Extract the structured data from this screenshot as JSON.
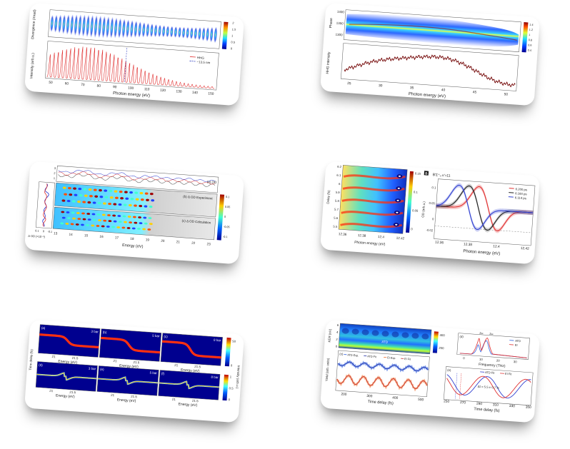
{
  "panel1": {
    "top_ylabel": "Divergence (mrad)",
    "bottom_ylabel": "Intensity (arb.u.)",
    "xlabel": "Photon energy (eV)",
    "xticks": [
      "50",
      "60",
      "70",
      "80",
      "90",
      "100",
      "110",
      "120",
      "130",
      "140",
      "150"
    ],
    "colorbar_ticks": [
      "0",
      "0.5",
      "1",
      "1.5",
      "2"
    ],
    "legend": [
      "HHG",
      "~13.5 nm"
    ],
    "series_colors": {
      "hhg": "#e03030",
      "marker": "#3040c0"
    }
  },
  "panel2": {
    "top_ylabel": "Phase",
    "bottom_ylabel": "HHG intensity",
    "xlabel": "Photon energy (eV)",
    "yticks_top": [
      "1400",
      "1350",
      "1300"
    ],
    "xticks": [
      "25",
      "30",
      "35",
      "40",
      "45",
      "50"
    ],
    "colorbar_ticks": [
      "1.4",
      "1.2",
      "1",
      "0.8",
      "0.6",
      "0.4"
    ]
  },
  "panel3": {
    "label_a": "(a) OD",
    "label_b": "(b) Δ OD Experiment",
    "label_c": "(c) Δ OD Calculation",
    "top_yticks": [
      "3",
      "2",
      "1"
    ],
    "xlabel": "Energy (eV)",
    "xticks": [
      "13",
      "14",
      "15",
      "16",
      "17",
      "18",
      "19",
      "20",
      "21",
      "22",
      "23"
    ],
    "colorbar_ticks": [
      "0.1",
      "0.05",
      "0",
      "-0.05",
      "-0.1"
    ],
    "left_xticks": [
      "0.1",
      "0",
      "-0.1"
    ],
    "left_label": "Δ OD (×10⁻³)"
  },
  "panel4": {
    "left_ylabel": "Delay (fs)",
    "left_yticks": [
      "6.2",
      "6.1",
      "6",
      "5.9",
      "5.8",
      "5.7",
      "5.6",
      "5.5"
    ],
    "left_xticks": [
      "12.36",
      "12.38",
      "12.4",
      "12.42"
    ],
    "colorbar_ticks": [
      "0.15",
      "0.1",
      "0.05",
      "0"
    ],
    "panel_letter": "B",
    "state_label": "B′Σ⁺ᵤ v′=11",
    "legend": [
      "6.200 ps",
      "6.160 ps",
      "6.114 ps"
    ],
    "right_ylabel": "OD (arb.u.)",
    "right_yticks": [
      "0.1",
      "0.05",
      "0",
      "-0.02"
    ],
    "right_xticks": [
      "12.36",
      "12.38",
      "12.4",
      "12.42"
    ],
    "xlabel": "Photon energy (eV)",
    "series_colors": [
      "#e03030",
      "#202020",
      "#3040d0"
    ]
  },
  "panel5": {
    "panels_top": [
      "(a)",
      "(b)",
      "(c)"
    ],
    "pressures_top": [
      "3 bar",
      "5 bar",
      "8 bar"
    ],
    "panels_bottom": [
      "(d)",
      "(e)",
      "(f)"
    ],
    "pressures_bottom": [
      "3 bar",
      "5 bar",
      "8 bar"
    ],
    "xticks": [
      "21",
      "21.5"
    ],
    "xlabel": "Energy (eV)",
    "colorbar_top": [
      "50",
      "0"
    ],
    "colorbar_bottom": [
      "1",
      "0.5",
      "0"
    ],
    "colorbar_label": "Intensity (arb.u.)",
    "ylabel": "Time delay (fs)"
  },
  "panel6": {
    "ylabel_a": "KER (eV)",
    "yticks_a": [
      "6",
      "4",
      "2",
      "0"
    ],
    "colorbar": [
      "400",
      "200"
    ],
    "atd_label": "ATD",
    "legend_c": [
      "ATD Exp.",
      "ATD Fit",
      "EI Exp.",
      "EI Fit"
    ],
    "ylabel_c": "Yield (arb. units)",
    "label_c": "(c)",
    "xticks_left": [
      "200",
      "300",
      "400",
      "500"
    ],
    "xlabel_left": "Time delay (fs)",
    "label_d": "(d)",
    "legend_d": [
      "ATD",
      "EI"
    ],
    "xticks_d": [
      "0",
      "10",
      "20",
      "30"
    ],
    "xlabel_d": "Frequency (THz)",
    "omega_labels": [
      "2ω",
      "2ω"
    ],
    "label_e": "(e)",
    "legend_e": [
      "ATD Fit",
      "EI Fit"
    ],
    "delta_t": "Δt = 5.5 ± 0.7 fs",
    "xticks_right": [
      "250",
      "270",
      "290",
      "310",
      "330",
      "350"
    ],
    "xlabel_right": "Time delay (fs)"
  }
}
